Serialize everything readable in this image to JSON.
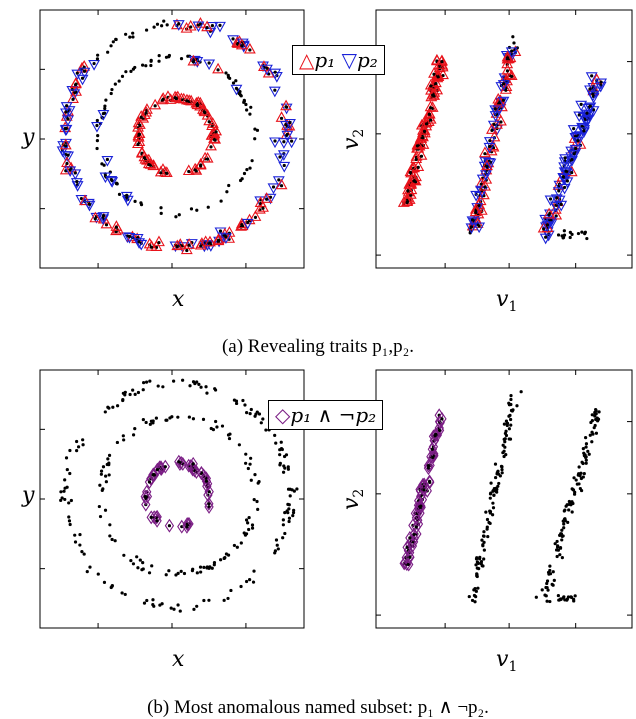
{
  "captions": {
    "a": "(a) Revealing traits p₁,p₂.",
    "b": "(b) Most anomalous named subset: p₁ ∧ ¬p₂."
  },
  "colors": {
    "p1": "#e8131b",
    "p2": "#1a22d8",
    "subset": "#7b1e85",
    "points": "#000000"
  },
  "chart_data": [
    {
      "type": "scatter",
      "panel": "a-left",
      "xlabel": "x",
      "ylabel": "y",
      "legend": [
        {
          "symbol": "triangle-up",
          "name": "p1",
          "color": "#e8131b"
        },
        {
          "symbol": "triangle-down",
          "name": "p2",
          "color": "#1a22d8"
        }
      ],
      "legend_text": [
        "p₁",
        "p₂"
      ],
      "legend_placement": "top-right",
      "rings": [
        {
          "name": "inner",
          "radius": 1.0,
          "marker": "p1"
        },
        {
          "name": "middle",
          "radius": 2.2,
          "marker": "mixed"
        },
        {
          "name": "outer",
          "radius": 3.3,
          "marker": "p1-p2"
        }
      ]
    },
    {
      "type": "scatter",
      "panel": "a-right",
      "xlabel": "v1",
      "ylabel": "v2",
      "clusters": [
        {
          "name": "left",
          "marker": "p1"
        },
        {
          "name": "middle",
          "marker": "mixed"
        },
        {
          "name": "right",
          "marker": "p2"
        }
      ]
    },
    {
      "type": "scatter",
      "panel": "b-left",
      "xlabel": "x",
      "ylabel": "y",
      "legend": [
        {
          "symbol": "diamond",
          "name": "p1 ∧ ¬p2",
          "color": "#7b1e85"
        }
      ],
      "legend_text": [
        "p₁ ∧ ¬p₂"
      ],
      "legend_placement": "top-right",
      "highlighted": "inner ring"
    },
    {
      "type": "scatter",
      "panel": "b-right",
      "xlabel": "v1",
      "ylabel": "v2",
      "highlighted": "left cluster"
    }
  ],
  "labels": {
    "x": "x",
    "y": "y",
    "v": "v",
    "sub1": "1",
    "sub2": "2"
  }
}
